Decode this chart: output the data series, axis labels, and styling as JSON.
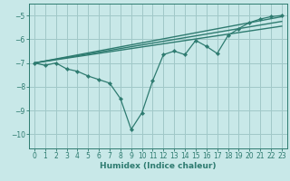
{
  "title": "",
  "xlabel": "Humidex (Indice chaleur)",
  "background_color": "#c8e8e8",
  "grid_color": "#a0c8c8",
  "line_color": "#2e7b70",
  "xlim": [
    -0.5,
    23.5
  ],
  "ylim": [
    -10.6,
    -4.5
  ],
  "yticks": [
    -10,
    -9,
    -8,
    -7,
    -6,
    -5
  ],
  "xticks": [
    0,
    1,
    2,
    3,
    4,
    5,
    6,
    7,
    8,
    9,
    10,
    11,
    12,
    13,
    14,
    15,
    16,
    17,
    18,
    19,
    20,
    21,
    22,
    23
  ],
  "series1_x": [
    0,
    1,
    2,
    3,
    4,
    5,
    6,
    7,
    8,
    9,
    10,
    11,
    12,
    13,
    14,
    15,
    16,
    17,
    18,
    19,
    20,
    21,
    22,
    23
  ],
  "series1_y": [
    -7.0,
    -7.1,
    -7.0,
    -7.25,
    -7.35,
    -7.55,
    -7.7,
    -7.85,
    -8.5,
    -9.8,
    -9.1,
    -7.75,
    -6.65,
    -6.5,
    -6.65,
    -6.05,
    -6.3,
    -6.6,
    -5.85,
    -5.55,
    -5.3,
    -5.15,
    -5.05,
    -5.0
  ],
  "line2_x": [
    0,
    23
  ],
  "line2_y": [
    -7.0,
    -5.05
  ],
  "line3_x": [
    0,
    23
  ],
  "line3_y": [
    -7.0,
    -5.25
  ],
  "line4_x": [
    0,
    23
  ],
  "line4_y": [
    -7.0,
    -5.45
  ],
  "xlabel_fontsize": 6.5,
  "tick_fontsize": 5.5
}
